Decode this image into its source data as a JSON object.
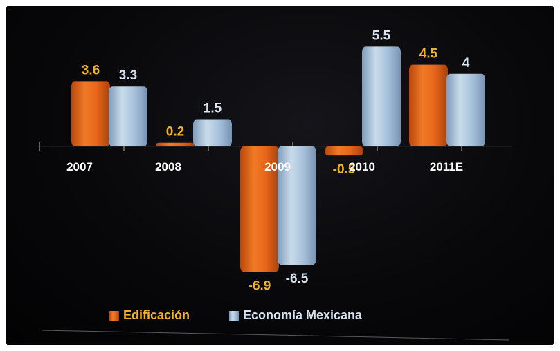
{
  "chart_data": {
    "type": "bar",
    "categories": [
      "2007",
      "2008",
      "2009",
      "2010",
      "2011E"
    ],
    "series": [
      {
        "name": "Edificación",
        "values": [
          3.6,
          0.2,
          -6.9,
          -0.5,
          4.5
        ],
        "color": "#e8661a",
        "label_color": "#f2b325"
      },
      {
        "name": "Economía Mexicana",
        "values": [
          3.3,
          1.5,
          -6.5,
          5.5,
          4
        ],
        "color": "#a9c3dc",
        "label_color": "#d7e3ee"
      }
    ],
    "data_labels": [
      [
        "3.6",
        "0.2",
        "-6.9",
        "-0.5",
        "4.5"
      ],
      [
        "3.3",
        "1.5",
        "-6.5",
        "5.5",
        "4"
      ]
    ],
    "legend_position": "bottom",
    "grid": false
  }
}
